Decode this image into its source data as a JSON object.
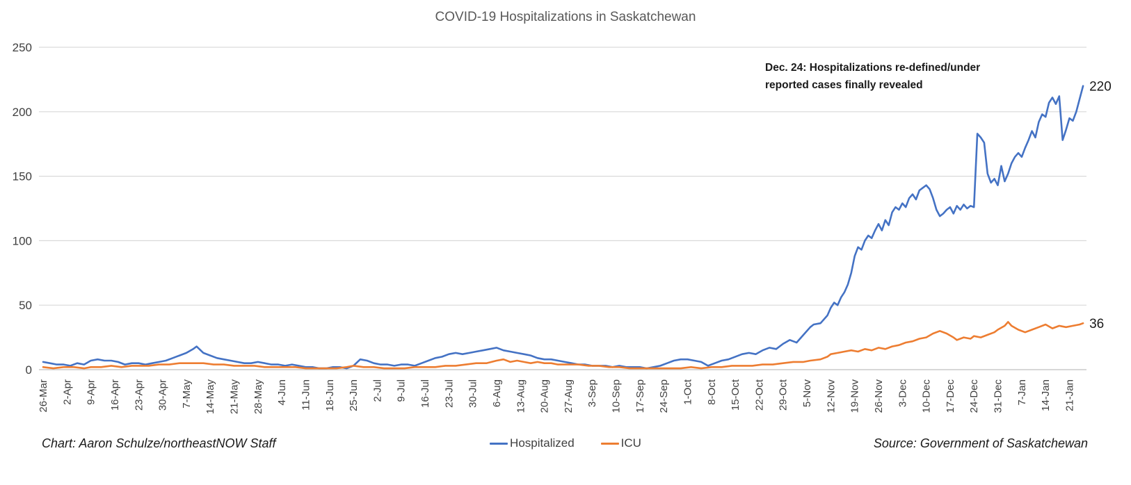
{
  "chart_data": {
    "type": "line",
    "title": "COVID-19 Hospitalizations in Saskatchewan",
    "xlabel": "",
    "ylabel": "",
    "ylim": [
      0,
      250
    ],
    "y_ticks": [
      0,
      50,
      100,
      150,
      200,
      250
    ],
    "xlim": [
      0,
      306
    ],
    "x_tick_interval_days": 7,
    "x_tick_labels": [
      "26-Mar",
      "2-Apr",
      "9-Apr",
      "16-Apr",
      "23-Apr",
      "30-Apr",
      "7-May",
      "14-May",
      "21-May",
      "28-May",
      "4-Jun",
      "11-Jun",
      "18-Jun",
      "25-Jun",
      "2-Jul",
      "9-Jul",
      "16-Jul",
      "23-Jul",
      "30-Jul",
      "6-Aug",
      "13-Aug",
      "20-Aug",
      "27-Aug",
      "3-Sep",
      "10-Sep",
      "17-Sep",
      "24-Sep",
      "1-Oct",
      "8-Oct",
      "15-Oct",
      "22-Oct",
      "29-Oct",
      "5-Nov",
      "12-Nov",
      "19-Nov",
      "26-Nov",
      "3-Dec",
      "10-Dec",
      "17-Dec",
      "24-Dec",
      "31-Dec",
      "7-Jan",
      "14-Jan",
      "21-Jan"
    ],
    "grid": "horizontal",
    "legend_position": "bottom",
    "annotation": {
      "line1": "Dec. 24: Hospitalizations re-defined/under",
      "line2": "reported cases finally revealed"
    },
    "series": [
      {
        "name": "Hospitalized",
        "color": "#4472C4",
        "end_label": "220",
        "points": [
          [
            0,
            6
          ],
          [
            2,
            5
          ],
          [
            4,
            4
          ],
          [
            6,
            4
          ],
          [
            8,
            3
          ],
          [
            10,
            5
          ],
          [
            12,
            4
          ],
          [
            14,
            7
          ],
          [
            16,
            8
          ],
          [
            18,
            7
          ],
          [
            20,
            7
          ],
          [
            22,
            6
          ],
          [
            24,
            4
          ],
          [
            26,
            5
          ],
          [
            28,
            5
          ],
          [
            30,
            4
          ],
          [
            32,
            5
          ],
          [
            34,
            6
          ],
          [
            36,
            7
          ],
          [
            38,
            9
          ],
          [
            40,
            11
          ],
          [
            42,
            13
          ],
          [
            44,
            16
          ],
          [
            45,
            18
          ],
          [
            47,
            13
          ],
          [
            49,
            11
          ],
          [
            51,
            9
          ],
          [
            53,
            8
          ],
          [
            55,
            7
          ],
          [
            57,
            6
          ],
          [
            59,
            5
          ],
          [
            61,
            5
          ],
          [
            63,
            6
          ],
          [
            65,
            5
          ],
          [
            67,
            4
          ],
          [
            69,
            4
          ],
          [
            71,
            3
          ],
          [
            73,
            4
          ],
          [
            75,
            3
          ],
          [
            77,
            2
          ],
          [
            79,
            2
          ],
          [
            81,
            1
          ],
          [
            83,
            1
          ],
          [
            85,
            2
          ],
          [
            87,
            2
          ],
          [
            89,
            1
          ],
          [
            91,
            3
          ],
          [
            93,
            8
          ],
          [
            95,
            7
          ],
          [
            97,
            5
          ],
          [
            99,
            4
          ],
          [
            101,
            4
          ],
          [
            103,
            3
          ],
          [
            105,
            4
          ],
          [
            107,
            4
          ],
          [
            109,
            3
          ],
          [
            111,
            5
          ],
          [
            113,
            7
          ],
          [
            115,
            9
          ],
          [
            117,
            10
          ],
          [
            119,
            12
          ],
          [
            121,
            13
          ],
          [
            123,
            12
          ],
          [
            125,
            13
          ],
          [
            127,
            14
          ],
          [
            129,
            15
          ],
          [
            131,
            16
          ],
          [
            133,
            17
          ],
          [
            135,
            15
          ],
          [
            137,
            14
          ],
          [
            139,
            13
          ],
          [
            141,
            12
          ],
          [
            143,
            11
          ],
          [
            145,
            9
          ],
          [
            147,
            8
          ],
          [
            149,
            8
          ],
          [
            151,
            7
          ],
          [
            153,
            6
          ],
          [
            155,
            5
          ],
          [
            157,
            4
          ],
          [
            159,
            4
          ],
          [
            161,
            3
          ],
          [
            163,
            3
          ],
          [
            165,
            3
          ],
          [
            167,
            2
          ],
          [
            169,
            3
          ],
          [
            171,
            2
          ],
          [
            173,
            2
          ],
          [
            175,
            2
          ],
          [
            177,
            1
          ],
          [
            179,
            2
          ],
          [
            181,
            3
          ],
          [
            183,
            5
          ],
          [
            185,
            7
          ],
          [
            187,
            8
          ],
          [
            189,
            8
          ],
          [
            191,
            7
          ],
          [
            193,
            6
          ],
          [
            195,
            3
          ],
          [
            197,
            5
          ],
          [
            199,
            7
          ],
          [
            201,
            8
          ],
          [
            203,
            10
          ],
          [
            205,
            12
          ],
          [
            207,
            13
          ],
          [
            209,
            12
          ],
          [
            211,
            15
          ],
          [
            213,
            17
          ],
          [
            215,
            16
          ],
          [
            217,
            20
          ],
          [
            219,
            23
          ],
          [
            221,
            21
          ],
          [
            223,
            27
          ],
          [
            225,
            33
          ],
          [
            226,
            35
          ],
          [
            228,
            36
          ],
          [
            230,
            42
          ],
          [
            231,
            48
          ],
          [
            232,
            52
          ],
          [
            233,
            50
          ],
          [
            234,
            56
          ],
          [
            235,
            60
          ],
          [
            236,
            66
          ],
          [
            237,
            75
          ],
          [
            238,
            88
          ],
          [
            239,
            95
          ],
          [
            240,
            93
          ],
          [
            241,
            100
          ],
          [
            242,
            104
          ],
          [
            243,
            102
          ],
          [
            244,
            108
          ],
          [
            245,
            113
          ],
          [
            246,
            108
          ],
          [
            247,
            116
          ],
          [
            248,
            112
          ],
          [
            249,
            122
          ],
          [
            250,
            126
          ],
          [
            251,
            124
          ],
          [
            252,
            129
          ],
          [
            253,
            126
          ],
          [
            254,
            133
          ],
          [
            255,
            136
          ],
          [
            256,
            132
          ],
          [
            257,
            139
          ],
          [
            258,
            141
          ],
          [
            259,
            143
          ],
          [
            260,
            140
          ],
          [
            261,
            133
          ],
          [
            262,
            124
          ],
          [
            263,
            119
          ],
          [
            264,
            121
          ],
          [
            265,
            124
          ],
          [
            266,
            126
          ],
          [
            267,
            121
          ],
          [
            268,
            127
          ],
          [
            269,
            124
          ],
          [
            270,
            128
          ],
          [
            271,
            125
          ],
          [
            272,
            127
          ],
          [
            273,
            126
          ],
          [
            274,
            183
          ],
          [
            275,
            180
          ],
          [
            276,
            176
          ],
          [
            277,
            152
          ],
          [
            278,
            145
          ],
          [
            279,
            148
          ],
          [
            280,
            143
          ],
          [
            281,
            158
          ],
          [
            282,
            146
          ],
          [
            283,
            152
          ],
          [
            284,
            160
          ],
          [
            285,
            165
          ],
          [
            286,
            168
          ],
          [
            287,
            165
          ],
          [
            288,
            172
          ],
          [
            289,
            178
          ],
          [
            290,
            185
          ],
          [
            291,
            180
          ],
          [
            292,
            192
          ],
          [
            293,
            198
          ],
          [
            294,
            196
          ],
          [
            295,
            207
          ],
          [
            296,
            211
          ],
          [
            297,
            206
          ],
          [
            298,
            212
          ],
          [
            299,
            178
          ],
          [
            300,
            186
          ],
          [
            301,
            195
          ],
          [
            302,
            193
          ],
          [
            303,
            200
          ],
          [
            304,
            210
          ],
          [
            305,
            220
          ]
        ]
      },
      {
        "name": "ICU",
        "color": "#ED7D31",
        "end_label": "36",
        "points": [
          [
            0,
            2
          ],
          [
            3,
            1
          ],
          [
            6,
            2
          ],
          [
            9,
            2
          ],
          [
            12,
            1
          ],
          [
            14,
            2
          ],
          [
            17,
            2
          ],
          [
            20,
            3
          ],
          [
            23,
            2
          ],
          [
            26,
            3
          ],
          [
            28,
            3
          ],
          [
            31,
            3
          ],
          [
            34,
            4
          ],
          [
            37,
            4
          ],
          [
            40,
            5
          ],
          [
            42,
            5
          ],
          [
            44,
            5
          ],
          [
            47,
            5
          ],
          [
            50,
            4
          ],
          [
            53,
            4
          ],
          [
            56,
            3
          ],
          [
            59,
            3
          ],
          [
            62,
            3
          ],
          [
            65,
            2
          ],
          [
            68,
            2
          ],
          [
            71,
            2
          ],
          [
            74,
            2
          ],
          [
            77,
            1
          ],
          [
            80,
            1
          ],
          [
            83,
            1
          ],
          [
            86,
            1
          ],
          [
            89,
            2
          ],
          [
            91,
            3
          ],
          [
            94,
            2
          ],
          [
            97,
            2
          ],
          [
            100,
            1
          ],
          [
            103,
            1
          ],
          [
            106,
            1
          ],
          [
            109,
            2
          ],
          [
            112,
            2
          ],
          [
            115,
            2
          ],
          [
            118,
            3
          ],
          [
            121,
            3
          ],
          [
            124,
            4
          ],
          [
            127,
            5
          ],
          [
            130,
            5
          ],
          [
            133,
            7
          ],
          [
            135,
            8
          ],
          [
            137,
            6
          ],
          [
            139,
            7
          ],
          [
            141,
            6
          ],
          [
            143,
            5
          ],
          [
            145,
            6
          ],
          [
            147,
            5
          ],
          [
            149,
            5
          ],
          [
            151,
            4
          ],
          [
            154,
            4
          ],
          [
            157,
            4
          ],
          [
            160,
            3
          ],
          [
            163,
            3
          ],
          [
            166,
            2
          ],
          [
            169,
            2
          ],
          [
            172,
            1
          ],
          [
            175,
            1
          ],
          [
            178,
            1
          ],
          [
            181,
            1
          ],
          [
            184,
            1
          ],
          [
            187,
            1
          ],
          [
            190,
            2
          ],
          [
            193,
            1
          ],
          [
            196,
            2
          ],
          [
            199,
            2
          ],
          [
            202,
            3
          ],
          [
            205,
            3
          ],
          [
            208,
            3
          ],
          [
            211,
            4
          ],
          [
            214,
            4
          ],
          [
            217,
            5
          ],
          [
            220,
            6
          ],
          [
            223,
            6
          ],
          [
            225,
            7
          ],
          [
            228,
            8
          ],
          [
            230,
            10
          ],
          [
            231,
            12
          ],
          [
            233,
            13
          ],
          [
            235,
            14
          ],
          [
            237,
            15
          ],
          [
            239,
            14
          ],
          [
            241,
            16
          ],
          [
            243,
            15
          ],
          [
            245,
            17
          ],
          [
            247,
            16
          ],
          [
            249,
            18
          ],
          [
            251,
            19
          ],
          [
            253,
            21
          ],
          [
            255,
            22
          ],
          [
            257,
            24
          ],
          [
            259,
            25
          ],
          [
            261,
            28
          ],
          [
            263,
            30
          ],
          [
            265,
            28
          ],
          [
            267,
            25
          ],
          [
            268,
            23
          ],
          [
            270,
            25
          ],
          [
            272,
            24
          ],
          [
            273,
            26
          ],
          [
            275,
            25
          ],
          [
            277,
            27
          ],
          [
            279,
            29
          ],
          [
            280,
            31
          ],
          [
            282,
            34
          ],
          [
            283,
            37
          ],
          [
            284,
            34
          ],
          [
            286,
            31
          ],
          [
            288,
            29
          ],
          [
            290,
            31
          ],
          [
            292,
            33
          ],
          [
            294,
            35
          ],
          [
            296,
            32
          ],
          [
            298,
            34
          ],
          [
            300,
            33
          ],
          [
            302,
            34
          ],
          [
            304,
            35
          ],
          [
            305,
            36
          ]
        ]
      }
    ]
  },
  "footer": {
    "credit": "Chart: Aaron Schulze/northeastNOW Staff",
    "source": "Source: Government of Saskatchewan"
  }
}
